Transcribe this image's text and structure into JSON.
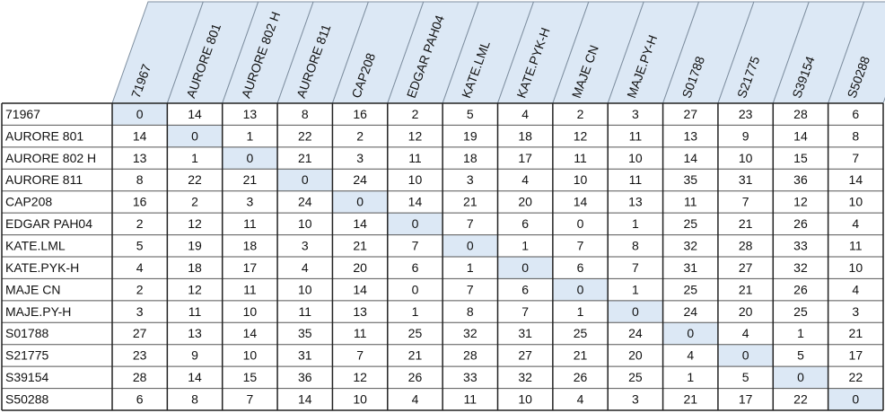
{
  "table": {
    "columns": [
      "71967",
      "AURORE 801",
      "AURORE 802 H",
      "AURORE 811",
      "CAP208",
      "EDGAR PAH04",
      "KATE.LML",
      "KATE.PYK-H",
      "MAJE CN",
      "MAJE.PY-H",
      "S01788",
      "S21775",
      "S39154",
      "S50288"
    ],
    "rows": [
      {
        "label": "71967",
        "cells": [
          0,
          14,
          13,
          8,
          16,
          2,
          5,
          4,
          2,
          3,
          27,
          23,
          28,
          6
        ]
      },
      {
        "label": "AURORE 801",
        "cells": [
          14,
          0,
          1,
          22,
          2,
          12,
          19,
          18,
          12,
          11,
          13,
          9,
          14,
          8
        ]
      },
      {
        "label": "AURORE 802 H",
        "cells": [
          13,
          1,
          0,
          21,
          3,
          11,
          18,
          17,
          11,
          10,
          14,
          10,
          15,
          7
        ]
      },
      {
        "label": "AURORE 811",
        "cells": [
          8,
          22,
          21,
          0,
          24,
          10,
          3,
          4,
          10,
          11,
          35,
          31,
          36,
          14
        ]
      },
      {
        "label": "CAP208",
        "cells": [
          16,
          2,
          3,
          24,
          0,
          14,
          21,
          20,
          14,
          13,
          11,
          7,
          12,
          10
        ]
      },
      {
        "label": "EDGAR PAH04",
        "cells": [
          2,
          12,
          11,
          10,
          14,
          0,
          7,
          6,
          0,
          1,
          25,
          21,
          26,
          4
        ]
      },
      {
        "label": "KATE.LML",
        "cells": [
          5,
          19,
          18,
          3,
          21,
          7,
          0,
          1,
          7,
          8,
          32,
          28,
          33,
          11
        ]
      },
      {
        "label": "KATE.PYK-H",
        "cells": [
          4,
          18,
          17,
          4,
          20,
          6,
          1,
          0,
          6,
          7,
          31,
          27,
          32,
          10
        ]
      },
      {
        "label": "MAJE CN",
        "cells": [
          2,
          12,
          11,
          10,
          14,
          0,
          7,
          6,
          0,
          1,
          25,
          21,
          26,
          4
        ]
      },
      {
        "label": "MAJE.PY-H",
        "cells": [
          3,
          11,
          10,
          11,
          13,
          1,
          8,
          7,
          1,
          0,
          24,
          20,
          25,
          3
        ]
      },
      {
        "label": "S01788",
        "cells": [
          27,
          13,
          14,
          35,
          11,
          25,
          32,
          31,
          25,
          24,
          0,
          4,
          1,
          21
        ]
      },
      {
        "label": "S21775",
        "cells": [
          23,
          9,
          10,
          31,
          7,
          21,
          28,
          27,
          21,
          20,
          4,
          0,
          5,
          17
        ]
      },
      {
        "label": "S39154",
        "cells": [
          28,
          14,
          15,
          36,
          12,
          26,
          33,
          32,
          26,
          25,
          1,
          5,
          0,
          22
        ]
      },
      {
        "label": "S50288",
        "cells": [
          6,
          8,
          7,
          14,
          10,
          4,
          11,
          10,
          4,
          3,
          21,
          17,
          22,
          0
        ]
      }
    ]
  }
}
